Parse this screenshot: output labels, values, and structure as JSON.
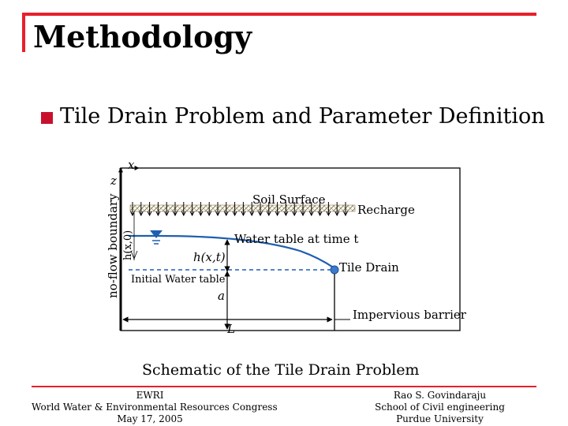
{
  "slide": {
    "title": "Methodology",
    "bullet": "Tile Drain Problem and Parameter Definition",
    "accent_color": "#e8202a",
    "bullet_color": "#c8102e"
  },
  "diagram": {
    "axis_x": "x",
    "axis_z": "z",
    "no_flow_boundary": "no-flow boundary",
    "initial_head": "h(x,0)",
    "soil_surface": "Soil Surface",
    "recharge": "Recharge",
    "water_table_t": "Water table at time t",
    "head_t": "h(x,t)",
    "tile_drain": "Tile Drain",
    "initial_water_table": "Initial Water table",
    "depth_a": "a",
    "impervious_barrier": "Impervious barrier",
    "length_L": "L",
    "water_color": "#1f5fb0"
  },
  "caption": "Schematic of the Tile Drain Problem",
  "footer": {
    "left": [
      "EWRI",
      "World Water & Environmental Resources Congress",
      "May 17, 2005"
    ],
    "right": [
      "Rao S. Govindaraju",
      "School of Civil engineering",
      "Purdue University"
    ]
  }
}
